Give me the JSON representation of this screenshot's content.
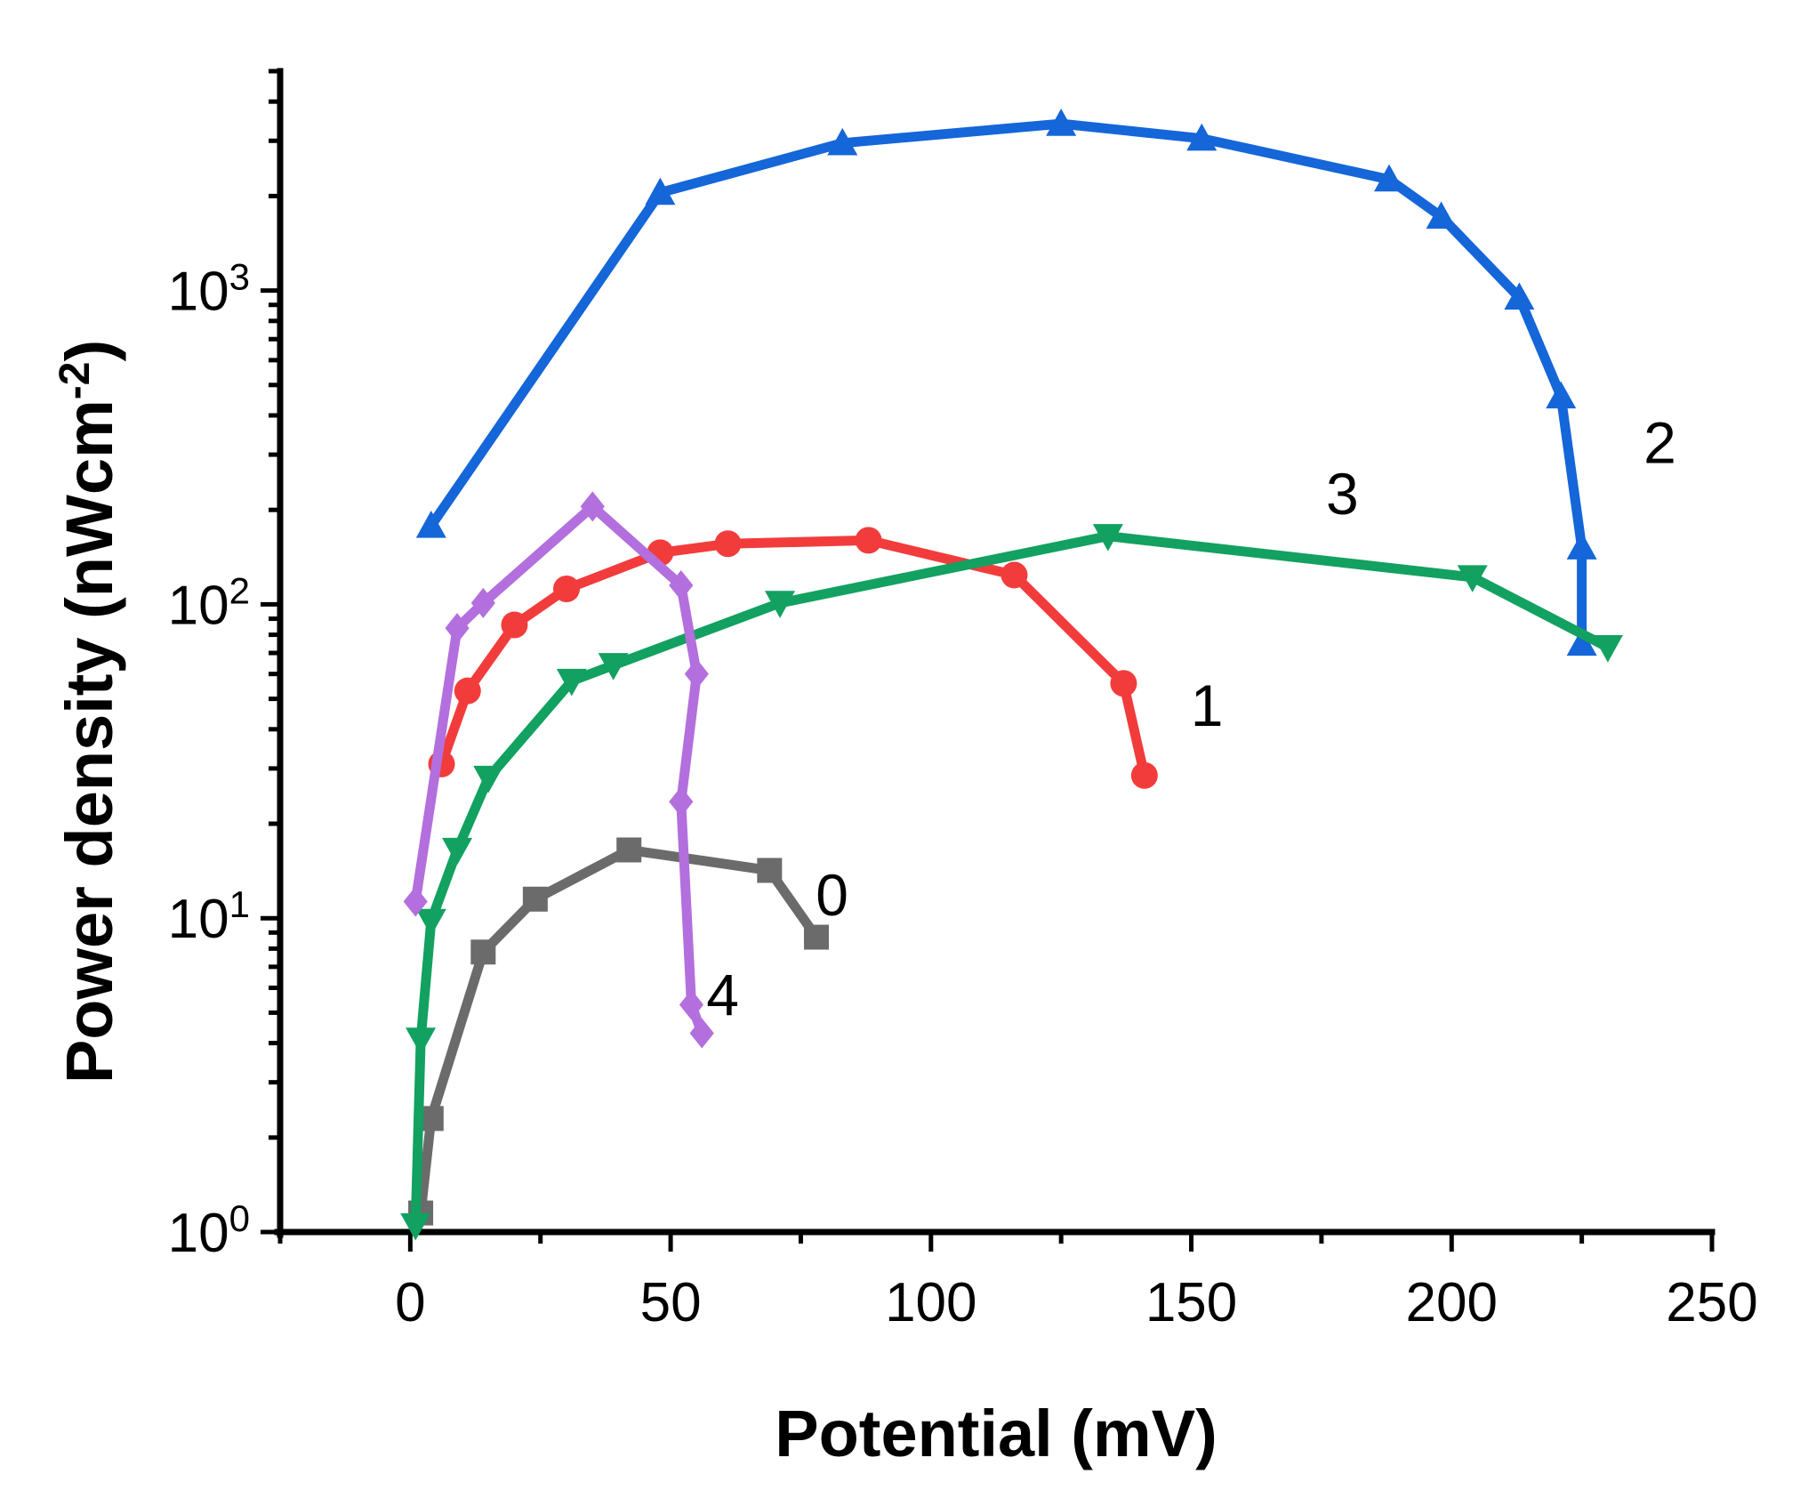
{
  "chart_data": {
    "type": "line",
    "title": "",
    "xlabel": "Potential (mV)",
    "ylabel_main": "Power density (nWcm",
    "ylabel_sup": "-2",
    "ylabel_close": ")",
    "yscale": "log",
    "xlim": [
      -25,
      250
    ],
    "ylim": [
      1,
      5000
    ],
    "x_ticks": [
      0,
      50,
      100,
      150,
      200,
      250
    ],
    "y_ticks": [
      1,
      10,
      100,
      1000
    ],
    "y_tick_labels": [
      {
        "base": "10",
        "exp": "0"
      },
      {
        "base": "10",
        "exp": "1"
      },
      {
        "base": "10",
        "exp": "2"
      },
      {
        "base": "10",
        "exp": "3"
      }
    ],
    "series": [
      {
        "name": "0",
        "color": "#6b6b6b",
        "marker": "square",
        "points": [
          [
            2,
            1.15
          ],
          [
            4,
            2.3
          ],
          [
            14,
            7.8
          ],
          [
            24,
            11.5
          ],
          [
            42,
            16.5
          ],
          [
            69,
            14.2
          ],
          [
            78,
            8.7
          ]
        ]
      },
      {
        "name": "1",
        "color": "#f23c3c",
        "marker": "circle",
        "points": [
          [
            6,
            31
          ],
          [
            11,
            53
          ],
          [
            20,
            86
          ],
          [
            30,
            112
          ],
          [
            48,
            146
          ],
          [
            61,
            156
          ],
          [
            88,
            160
          ],
          [
            116,
            124
          ],
          [
            137,
            56
          ],
          [
            141,
            28.5
          ]
        ]
      },
      {
        "name": "2",
        "color": "#1466d9",
        "marker": "triangle-up",
        "points": [
          [
            4,
            178
          ],
          [
            48,
            2050
          ],
          [
            83,
            2950
          ],
          [
            125,
            3400
          ],
          [
            152,
            3050
          ],
          [
            188,
            2260
          ],
          [
            198,
            1720
          ],
          [
            213,
            950
          ],
          [
            221,
            460
          ],
          [
            225,
            152
          ],
          [
            225,
            75
          ]
        ]
      },
      {
        "name": "3",
        "color": "#12a160",
        "marker": "triangle-down",
        "points": [
          [
            1,
            1.05
          ],
          [
            2,
            4.1
          ],
          [
            4,
            9.8
          ],
          [
            9,
            16.5
          ],
          [
            15,
            28
          ],
          [
            31,
            57
          ],
          [
            39,
            64
          ],
          [
            71,
            101
          ],
          [
            134,
            165
          ],
          [
            204,
            122
          ],
          [
            230,
            73
          ]
        ]
      },
      {
        "name": "4",
        "color": "#b36fdd",
        "marker": "diamond",
        "points": [
          [
            1,
            11.3
          ],
          [
            9,
            84
          ],
          [
            14,
            101
          ],
          [
            35,
            205
          ],
          [
            52,
            115
          ],
          [
            55,
            60
          ],
          [
            52,
            23.5
          ],
          [
            54,
            5.3
          ],
          [
            56,
            4.3
          ]
        ]
      }
    ],
    "annotations": [
      {
        "text": "0",
        "x": 81,
        "y": 10.2
      },
      {
        "text": "1",
        "x": 153,
        "y": 41
      },
      {
        "text": "2",
        "x": 240,
        "y": 282
      },
      {
        "text": "3",
        "x": 179,
        "y": 194
      },
      {
        "text": "4",
        "x": 60,
        "y": 4.9
      }
    ]
  }
}
